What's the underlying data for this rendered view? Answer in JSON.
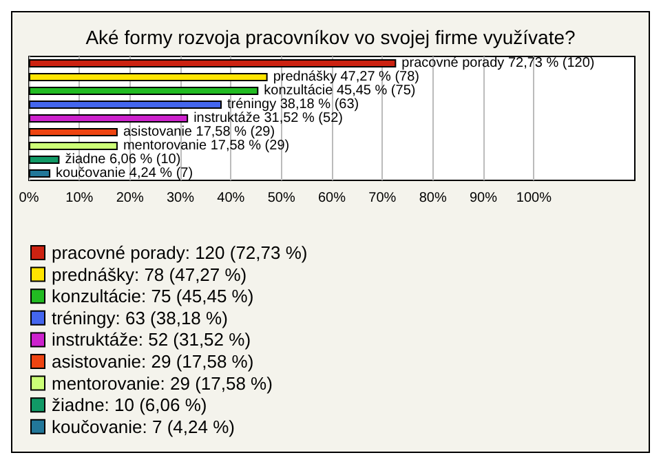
{
  "chart_data": {
    "type": "bar",
    "orientation": "horizontal",
    "stacked": true,
    "title": "Aké formy rozvoja pracovníkov vo svojej firme využívate?",
    "categories": [
      null,
      null,
      null,
      null,
      null,
      null,
      null,
      null,
      null
    ],
    "series": [
      {
        "name": "pracovné porady: 120 (72,73 %)",
        "color": "#cc2211",
        "values": [
          72.73,
          null,
          null,
          null,
          null,
          null,
          null,
          null,
          null
        ],
        "value_labels": [
          "pracovné porady 72,73 % (120)",
          null,
          null,
          null,
          null,
          null,
          null,
          null,
          null
        ]
      },
      {
        "name": "prednášky: 78 (47,27 %)",
        "color": "#ffe400",
        "values": [
          null,
          47.27,
          null,
          null,
          null,
          null,
          null,
          null,
          null
        ],
        "value_labels": [
          null,
          "prednášky 47,27 % (78)",
          null,
          null,
          null,
          null,
          null,
          null,
          null
        ]
      },
      {
        "name": "konzultácie: 75 (45,45 %)",
        "color": "#22bb22",
        "values": [
          null,
          null,
          45.45,
          null,
          null,
          null,
          null,
          null,
          null
        ],
        "value_labels": [
          null,
          null,
          "konzultácie 45,45 % (75)",
          null,
          null,
          null,
          null,
          null,
          null
        ]
      },
      {
        "name": "tréningy: 63 (38,18 %)",
        "color": "#4466ee",
        "values": [
          null,
          null,
          null,
          38.18,
          null,
          null,
          null,
          null,
          null
        ],
        "value_labels": [
          null,
          null,
          null,
          "tréningy 38,18 % (63)",
          null,
          null,
          null,
          null,
          null
        ]
      },
      {
        "name": "instruktáže: 52 (31,52 %)",
        "color": "#cc22cc",
        "values": [
          null,
          null,
          null,
          null,
          31.52,
          null,
          null,
          null,
          null
        ],
        "value_labels": [
          null,
          null,
          null,
          null,
          "instruktáže 31,52 % (52)",
          null,
          null,
          null,
          null
        ]
      },
      {
        "name": "asistovanie: 29 (17,58 %)",
        "color": "#ee4411",
        "values": [
          null,
          null,
          null,
          null,
          null,
          17.58,
          null,
          null,
          null
        ],
        "value_labels": [
          null,
          null,
          null,
          null,
          null,
          "asistovanie 17,58 % (29)",
          null,
          null,
          null
        ]
      },
      {
        "name": "mentorovanie: 29 (17,58 %)",
        "color": "#ccff77",
        "values": [
          null,
          null,
          null,
          null,
          null,
          null,
          17.58,
          null,
          null
        ],
        "value_labels": [
          null,
          null,
          null,
          null,
          null,
          null,
          "mentorovanie 17,58 % (29)",
          null,
          null
        ]
      },
      {
        "name": "žiadne: 10 (6,06 %)",
        "color": "#119966",
        "values": [
          null,
          null,
          null,
          null,
          null,
          null,
          null,
          6.06,
          null
        ],
        "value_labels": [
          null,
          null,
          null,
          null,
          null,
          null,
          null,
          "žiadne 6,06 % (10)",
          null
        ]
      },
      {
        "name": "koučovanie: 7 (4,24 %)",
        "color": "#227799",
        "values": [
          null,
          null,
          null,
          null,
          null,
          null,
          null,
          null,
          4.24
        ],
        "value_labels": [
          null,
          null,
          null,
          null,
          null,
          null,
          null,
          null,
          "koučovanie 4,24 % (7)"
        ]
      }
    ],
    "xlim": [
      0,
      120
    ],
    "xticks": [
      {
        "value": 0,
        "label": "0%"
      },
      {
        "value": 10,
        "label": "10%"
      },
      {
        "value": 20,
        "label": "20%"
      },
      {
        "value": 30,
        "label": "30%"
      },
      {
        "value": 40,
        "label": "40%"
      },
      {
        "value": 50,
        "label": "50%"
      },
      {
        "value": 60,
        "label": "60%"
      },
      {
        "value": 70,
        "label": "70%"
      },
      {
        "value": 80,
        "label": "80%"
      },
      {
        "value": 90,
        "label": "90%"
      },
      {
        "value": 100,
        "label": "100%"
      }
    ],
    "grid": "x",
    "legend": "bottom left"
  }
}
